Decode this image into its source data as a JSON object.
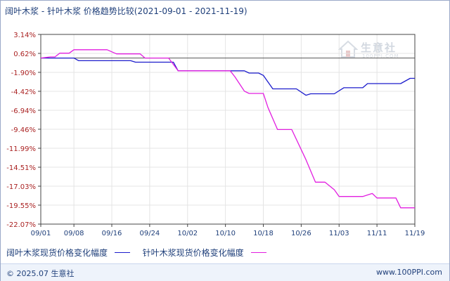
{
  "header": {
    "title": "阔叶木浆 - 针叶木浆 价格趋势比较(2021-09-01 - 2021-11-19)"
  },
  "watermark": {
    "brand": "生意社",
    "sub": "100PPI.COM"
  },
  "footer": {
    "copyright": "© 2025.07 生意社",
    "url": "www.100PPI.com"
  },
  "colors": {
    "hardwood": "#1c1ccc",
    "softwood": "#e21ee0",
    "axis": "#444444",
    "grid": "#e4e4e4",
    "ytick": "#aa2222"
  },
  "chart_data": {
    "type": "line",
    "title": "阔叶木浆 - 针叶木浆 价格趋势比较(2021-09-01 - 2021-11-19)",
    "xlabel": "",
    "ylabel": "",
    "xlim": [
      0,
      79
    ],
    "ylim": [
      -22.07,
      3.14
    ],
    "grid": true,
    "legend": "bottom",
    "x_tick_labels": [
      {
        "day": 0,
        "label": "09/01"
      },
      {
        "day": 7,
        "label": "09/08"
      },
      {
        "day": 15,
        "label": "09/16"
      },
      {
        "day": 23,
        "label": "09/24"
      },
      {
        "day": 31,
        "label": "10/02"
      },
      {
        "day": 39,
        "label": "10/10"
      },
      {
        "day": 47,
        "label": "10/18"
      },
      {
        "day": 55,
        "label": "10/26"
      },
      {
        "day": 63,
        "label": "11/03"
      },
      {
        "day": 71,
        "label": "11/11"
      },
      {
        "day": 79,
        "label": "11/19"
      }
    ],
    "y_tick_labels": [
      "3.14%",
      "0.62%",
      "-1.90%",
      "-4.42%",
      "-6.94%",
      "-9.46%",
      "-11.99%",
      "-14.51%",
      "-17.03%",
      "-19.55%",
      "-22.07%"
    ],
    "y_tick_values": [
      3.14,
      0.62,
      -1.9,
      -4.42,
      -6.94,
      -9.46,
      -11.99,
      -14.51,
      -17.03,
      -19.55,
      -22.07
    ],
    "series": [
      {
        "name": "阔叶木浆现货价格变化幅度",
        "color": "#1c1ccc",
        "points": [
          [
            0,
            0
          ],
          [
            7,
            0
          ],
          [
            8,
            -0.35
          ],
          [
            19,
            -0.35
          ],
          [
            20,
            -0.55
          ],
          [
            28,
            -0.55
          ],
          [
            29,
            -1.7
          ],
          [
            43,
            -1.7
          ],
          [
            44,
            -2.0
          ],
          [
            46,
            -2.0
          ],
          [
            47,
            -2.3
          ],
          [
            49,
            -4.1
          ],
          [
            54,
            -4.1
          ],
          [
            56,
            -4.95
          ],
          [
            57,
            -4.75
          ],
          [
            62,
            -4.75
          ],
          [
            64,
            -3.95
          ],
          [
            68,
            -3.95
          ],
          [
            69,
            -3.4
          ],
          [
            76,
            -3.4
          ],
          [
            78,
            -2.7
          ],
          [
            79,
            -2.7
          ]
        ]
      },
      {
        "name": "针叶木浆现货价格变化幅度",
        "color": "#e21ee0",
        "points": [
          [
            0,
            0
          ],
          [
            2,
            0.15
          ],
          [
            3,
            0.15
          ],
          [
            4,
            0.65
          ],
          [
            6,
            0.65
          ],
          [
            7,
            1.1
          ],
          [
            14,
            1.1
          ],
          [
            16,
            0.55
          ],
          [
            21,
            0.55
          ],
          [
            22,
            0.0
          ],
          [
            27,
            0.0
          ],
          [
            29,
            -1.7
          ],
          [
            40,
            -1.7
          ],
          [
            41,
            -2.5
          ],
          [
            43,
            -4.4
          ],
          [
            44,
            -4.7
          ],
          [
            47,
            -4.7
          ],
          [
            48,
            -6.6
          ],
          [
            50,
            -9.5
          ],
          [
            53,
            -9.5
          ],
          [
            56,
            -13.5
          ],
          [
            58,
            -16.5
          ],
          [
            60,
            -16.5
          ],
          [
            62,
            -17.5
          ],
          [
            63,
            -18.4
          ],
          [
            68,
            -18.4
          ],
          [
            70,
            -18.0
          ],
          [
            71,
            -18.6
          ],
          [
            75,
            -18.6
          ],
          [
            76,
            -19.9
          ],
          [
            79,
            -19.9
          ]
        ]
      }
    ]
  }
}
